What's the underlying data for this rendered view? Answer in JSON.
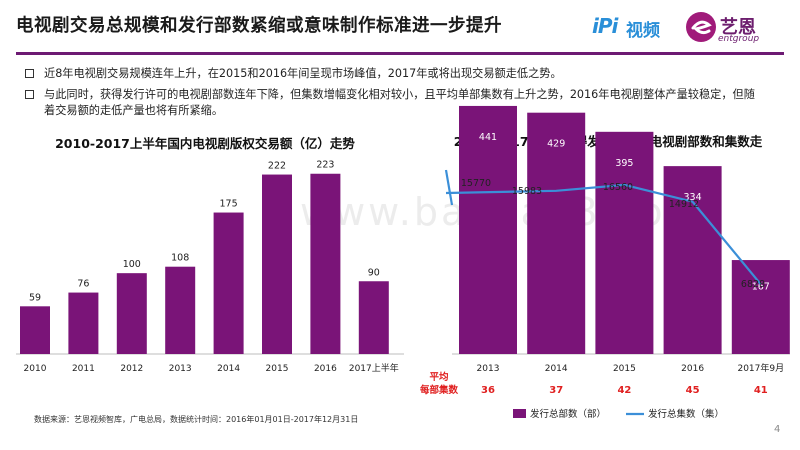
{
  "header": {
    "title": "电视剧交易总规模和发行部数紧缩或意味制作标准进一步提升",
    "logo_ipi": "iPi",
    "logo_video": "视频",
    "logo_name": "艺恩",
    "logo_sub": "entgroup"
  },
  "bullets": [
    "近8年电视剧交易规模连年上升，在2015和2016年间呈现市场峰值，2017年或将出现交易额走低之势。",
    "与此同时，获得发行许可的电视剧部数连年下降，但集数增幅变化相对较小，且平均单部集数有上升之势，2016年电视剧整体产量较稳定，但随着交易额的走低产量也将有所紧缩。"
  ],
  "watermark": "www.baogao8.com",
  "source": "数据来源：艺恩视频智库，广电总局，数据统计时间：2016年01月01日-2017年12月31日",
  "page_number": "4",
  "colors": {
    "bar": "#7a1478",
    "line": "#3b8fd8",
    "avg": "#e02020",
    "rule": "#6d1a73"
  },
  "chart_data": [
    {
      "type": "bar",
      "title": "2010-2017上半年国内电视剧版权交易额（亿）走势",
      "categories": [
        "2010",
        "2011",
        "2012",
        "2013",
        "2014",
        "2015",
        "2016",
        "2017上半年"
      ],
      "values": [
        59,
        76,
        100,
        108,
        175,
        222,
        223,
        90
      ],
      "ylim": [
        0,
        240
      ],
      "grid": false
    },
    {
      "type": "bar",
      "title": "2013-2017年9月获得发行许可的电视剧部数和集数走势",
      "categories": [
        "2013",
        "2014",
        "2015",
        "2016",
        "2017年9月"
      ],
      "series": [
        {
          "name": "发行总部数（部）",
          "type": "bar",
          "values": [
            441,
            429,
            395,
            334,
            167
          ]
        },
        {
          "name": "发行总集数（集）",
          "type": "line",
          "values": [
            15770,
            15983,
            16560,
            14912,
            6828
          ]
        }
      ],
      "avg_label": [
        "平均",
        "每部集数"
      ],
      "avg_values": [
        36,
        37,
        42,
        45,
        41
      ],
      "ylim_bars": [
        0,
        800
      ],
      "ylim_line": [
        0,
        19000
      ],
      "legend_position": "bottom"
    }
  ]
}
